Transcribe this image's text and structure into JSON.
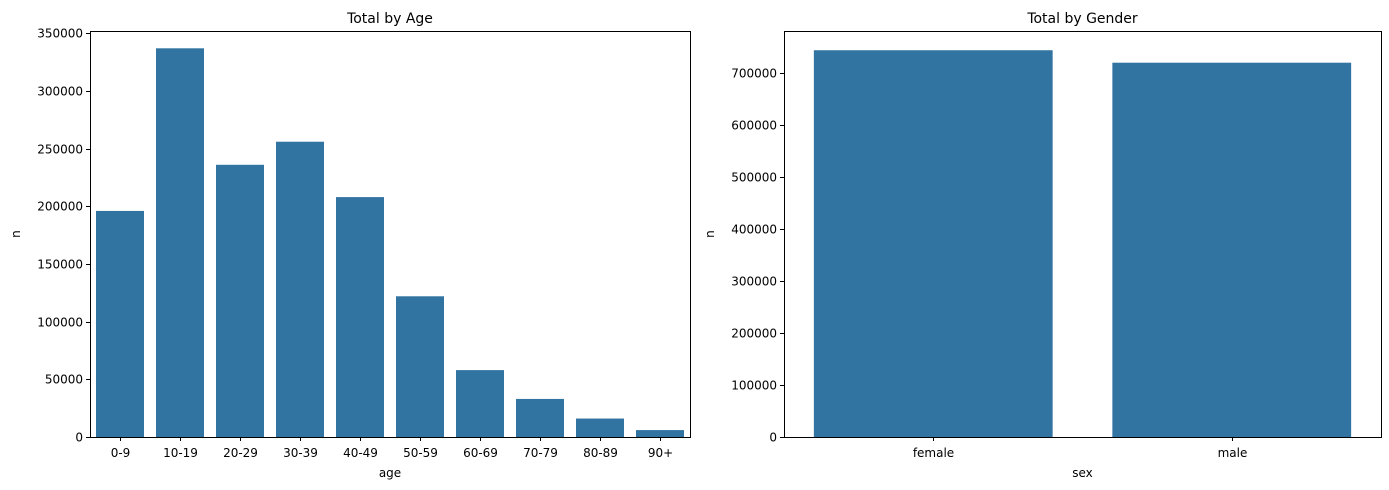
{
  "chart_data": [
    {
      "type": "bar",
      "title": "Total by Age",
      "xlabel": "age",
      "ylabel": "n",
      "categories": [
        "0-9",
        "10-19",
        "20-29",
        "30-39",
        "40-49",
        "50-59",
        "60-69",
        "70-79",
        "80-89",
        "90+"
      ],
      "values": [
        196000,
        337000,
        236000,
        256000,
        208000,
        122000,
        58000,
        33000,
        16000,
        6000
      ],
      "ylim": [
        0,
        352000
      ],
      "yticks": [
        0,
        50000,
        100000,
        150000,
        200000,
        250000,
        300000,
        350000
      ],
      "color": "#3274a1"
    },
    {
      "type": "bar",
      "title": "Total by Gender",
      "xlabel": "sex",
      "ylabel": "n",
      "categories": [
        "female",
        "male"
      ],
      "values": [
        744000,
        720000
      ],
      "ylim": [
        0,
        781000
      ],
      "yticks": [
        0,
        100000,
        200000,
        300000,
        400000,
        500000,
        600000,
        700000
      ],
      "color": "#3274a1"
    }
  ]
}
